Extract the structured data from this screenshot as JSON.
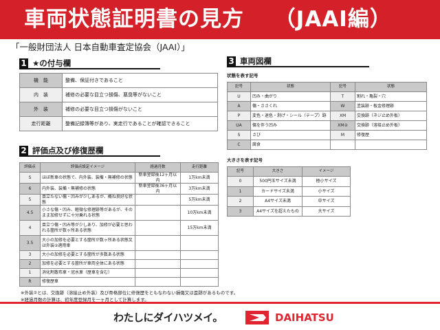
{
  "header": {
    "title": "車両状態証明書の見方　 （JAAI編）"
  },
  "subtitle": "「一般財団法人 日本自動車査定協会（JAAI）」",
  "section1": {
    "num": "1",
    "title": "★の付与欄",
    "rows": [
      {
        "k": "機　能",
        "v": "整備、保証付きであること"
      },
      {
        "k": "内　装",
        "v": "補修の必要な目立つ損傷、悪臭等がないこと"
      },
      {
        "k": "外　装",
        "v": "補修の必要な目立つ損傷がないこと"
      },
      {
        "k": "走行距離",
        "v": "整備記録簿等があり、実走行であることが確認できること"
      }
    ]
  },
  "section2": {
    "num": "2",
    "title": "評価点及び修復歴欄",
    "headers": [
      "評価点",
      "評価点設定イメージ",
      "経過月数",
      "走行距離"
    ],
    "rows": [
      {
        "s": "S",
        "d": "ほぼ新車の状態で、内外装、装備・無補修の状態",
        "m": "新車登録後12ヶ月以内",
        "km": "1万km未満"
      },
      {
        "s": "6",
        "d": "内外装、装備・無補修の状態",
        "m": "新車登録後36ヶ月以内",
        "km": "3万km未満"
      },
      {
        "s": "5",
        "d": "目立たない傷・凹みが少しあるが、概ね良好な状態",
        "m": "",
        "km": "5万km未満"
      },
      {
        "s": "4.5",
        "d": "小さな傷・凹み、軽微な修理跡等があるが、そのまま加修せずに十分乗れる状態",
        "m": "",
        "km": "10万km未満"
      },
      {
        "s": "4",
        "d": "目立つ傷・凹み等が少しあり、加修が必要と思われる箇所が数ヶ所ある状態",
        "m": "",
        "km": "15万km未満"
      },
      {
        "s": "3.5",
        "d": "大小の加修を必要とする箇所が数ヶ所ある状態又は外装②適用車",
        "m": "",
        "km": ""
      },
      {
        "s": "3",
        "d": "大小の加修を必要とする箇所が多数ある状態",
        "m": "",
        "km": ""
      },
      {
        "s": "2",
        "d": "加修を必要とする箇所が車両全体にある状態",
        "m": "",
        "km": ""
      },
      {
        "s": "1",
        "d": "消化剤散布車・冠水車（歴車を含む）",
        "m": "",
        "km": ""
      },
      {
        "s": "R",
        "d": "修復歴車",
        "m": "",
        "km": ""
      }
    ],
    "notes": [
      "※外装②とは、交換跡（溶接止め外装）及び骨格部位に修復歴をともなわない損傷又は歪跡があるものです。",
      "※経過月数の計算は、初年度登録月を一ヶ月として計算します。"
    ]
  },
  "section3": {
    "num": "3",
    "title": "車両図欄",
    "state_caption": "状態を表す記号",
    "state_headers": [
      "記号",
      "状態",
      "記号",
      "状態"
    ],
    "state_rows": [
      [
        "U",
        "凹み・曲がり",
        "T",
        "割れ・亀裂・穴"
      ],
      [
        "A",
        "傷・ささくれ",
        "W",
        "塗装跡・板金修理跡"
      ],
      [
        "P",
        "変色・退色・剥げ・シール（テープ）跡",
        "XM",
        "交換跡（ネジ止め外板）"
      ],
      [
        "UA",
        "傷を伴う凹み",
        "XM②",
        "交換跡（溶接止め外板）"
      ],
      [
        "S",
        "さび",
        "M",
        "修復歴"
      ],
      [
        "C",
        "腐食",
        "",
        ""
      ]
    ],
    "size_caption": "大きさを表す記号",
    "size_headers": [
      "記号",
      "大きさ",
      "イメージ"
    ],
    "size_rows": [
      [
        "0",
        "500円玉サイズ未満",
        "極小サイズ"
      ],
      [
        "1",
        "カードサイズ未満",
        "小サイズ"
      ],
      [
        "2",
        "A4サイズ未満",
        "中サイズ"
      ],
      [
        "3",
        "A4サイズを超えたもの",
        "大サイズ"
      ]
    ]
  },
  "footer": {
    "slogan": "わたしにダイハツメイ。",
    "brand": "DAIHATSU"
  },
  "colors": {
    "accent": "#d42129",
    "header_cell": "#c9c9c9"
  }
}
